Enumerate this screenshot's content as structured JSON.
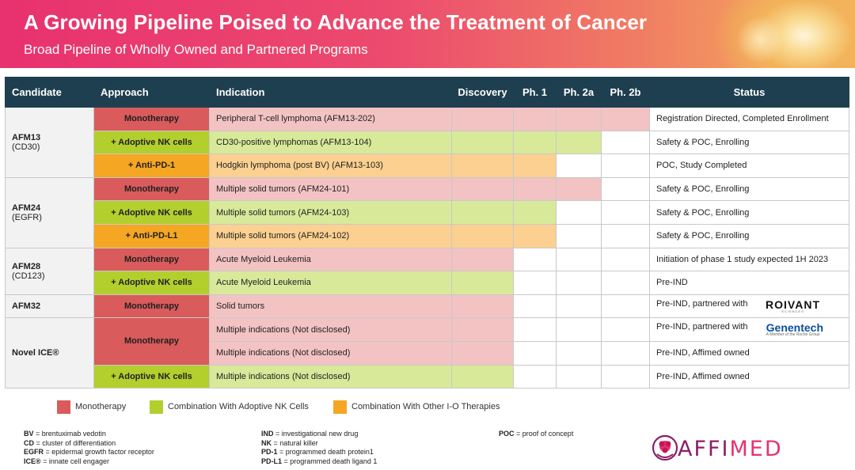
{
  "header": {
    "title": "A Growing Pipeline Poised to Advance the Treatment of Cancer",
    "subtitle": "Broad Pipeline of Wholly Owned and Partnered Programs"
  },
  "table": {
    "columns": {
      "candidate": "Candidate",
      "approach": "Approach",
      "indication": "Indication",
      "discovery": "Discovery",
      "ph1": "Ph. 1",
      "ph2a": "Ph. 2a",
      "ph2b": "Ph. 2b",
      "status": "Status"
    },
    "candidates": {
      "afm13": {
        "name": "AFM13",
        "target": "(CD30)"
      },
      "afm24": {
        "name": "AFM24",
        "target": "(EGFR)"
      },
      "afm28": {
        "name": "AFM28",
        "target": "(CD123)"
      },
      "afm32": {
        "name": "AFM32"
      },
      "novel": {
        "name": "Novel ICE®"
      }
    },
    "rows": [
      {
        "approach": "Monotherapy",
        "indication": "Peripheral T-cell lymphoma (AFM13-202)",
        "status": "Registration Directed, Completed Enrollment",
        "phase_reached": "Ph. 2b"
      },
      {
        "approach": "+ Adoptive NK cells",
        "indication": "CD30-positive lymphomas (AFM13-104)",
        "status": "Safety & POC, Enrolling",
        "phase_reached": "Ph. 2a"
      },
      {
        "approach": "+ Anti-PD-1",
        "indication": "Hodgkin lymphoma (post BV) (AFM13-103)",
        "status": "POC, Study Completed",
        "phase_reached": "Ph. 1"
      },
      {
        "approach": "Monotherapy",
        "indication": "Multiple solid tumors (AFM24-101)",
        "status": "Safety & POC, Enrolling",
        "phase_reached": "Ph. 2a"
      },
      {
        "approach": "+ Adoptive NK cells",
        "indication": "Multiple solid tumors  (AFM24-103)",
        "status": "Safety & POC, Enrolling",
        "phase_reached": "Ph. 1"
      },
      {
        "approach": "+ Anti-PD-L1",
        "indication": "Multiple solid tumors (AFM24-102)",
        "status": "Safety & POC, Enrolling",
        "phase_reached": "Ph. 1"
      },
      {
        "approach": "Monotherapy",
        "indication": "Acute Myeloid Leukemia",
        "status": "Initiation of phase 1 study expected 1H 2023",
        "phase_reached": "Discovery"
      },
      {
        "approach": "+ Adoptive NK cells",
        "indication": "Acute Myeloid Leukemia",
        "status": "Pre-IND",
        "phase_reached": "Discovery"
      },
      {
        "approach": "Monotherapy",
        "indication": "Solid tumors",
        "status": "Pre-IND, partnered with",
        "phase_reached": "Discovery"
      },
      {
        "approach": "Monotherapy",
        "indication": "Multiple indications (Not disclosed)",
        "status": "Pre-IND, partnered with",
        "phase_reached": "Discovery"
      },
      {
        "indication": "Multiple indications (Not disclosed)",
        "status": "Pre-IND, Affimed owned",
        "phase_reached": "Discovery"
      },
      {
        "approach": "+ Adoptive NK cells",
        "indication": "Multiple indications (Not disclosed)",
        "status": "Pre-IND, Affimed owned",
        "phase_reached": "Discovery"
      }
    ],
    "partners": {
      "roivant": {
        "name": "ROIVANT",
        "tagline": "SCIENCES"
      },
      "genentech": {
        "name": "Genentech",
        "tagline": "A Member of the Roche Group"
      }
    }
  },
  "legend": [
    {
      "label": "Monotherapy",
      "color": "#d95b5b"
    },
    {
      "label": "Combination With Adoptive NK Cells",
      "color": "#b3cf2e"
    },
    {
      "label": "Combination With Other I-O Therapies",
      "color": "#f5a623"
    }
  ],
  "abbreviations": {
    "col1": [
      {
        "abbr": "BV",
        "def": " = brentuximab vedotin"
      },
      {
        "abbr": "CD",
        "def": " = cluster of differentiation"
      },
      {
        "abbr": "EGFR",
        "def": " = epidermal growth factor receptor"
      },
      {
        "abbr": "ICE®",
        "def": " = innate cell engager"
      }
    ],
    "col2": [
      {
        "abbr": "IND",
        "def": " = investigational new drug"
      },
      {
        "abbr": "NK",
        "def": " = natural killer"
      },
      {
        "abbr": "PD-1",
        "def": " = programmed death protein1"
      },
      {
        "abbr": "PD-L1",
        "def": " = programmed death ligand 1"
      }
    ],
    "col3": [
      {
        "abbr": "POC",
        "def": " = proof of concept"
      }
    ]
  },
  "logo": {
    "part1": "AFFI",
    "part2": "MED"
  },
  "colors": {
    "header_bg": "#1e3f4f",
    "monotherapy": "#d95b5b",
    "adoptive_nk": "#b3cf2e",
    "other_io": "#f5a623"
  }
}
